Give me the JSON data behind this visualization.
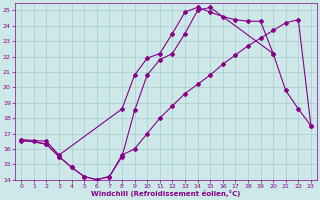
{
  "xlabel": "Windchill (Refroidissement éolien,°C)",
  "xlim": [
    -0.5,
    23.5
  ],
  "ylim": [
    14,
    25.5
  ],
  "xticks": [
    0,
    1,
    2,
    3,
    4,
    5,
    6,
    7,
    8,
    9,
    10,
    11,
    12,
    13,
    14,
    15,
    16,
    17,
    18,
    19,
    20,
    21,
    22,
    23
  ],
  "yticks": [
    14,
    15,
    16,
    17,
    18,
    19,
    20,
    21,
    22,
    23,
    24,
    25
  ],
  "bg_color": "#cde8e8",
  "grid_color": "#aacccc",
  "line_color": "#880088",
  "line1_x": [
    0,
    1,
    2,
    3,
    4,
    5,
    6,
    7,
    8,
    9,
    10,
    11,
    12,
    13,
    14,
    15,
    16,
    17,
    18,
    19,
    20,
    21,
    22,
    23
  ],
  "line1_y": [
    16.5,
    16.5,
    16.3,
    15.5,
    14.8,
    14.2,
    14.0,
    14.2,
    15.6,
    16.0,
    17.0,
    18.0,
    18.8,
    19.6,
    20.2,
    20.8,
    21.5,
    22.1,
    22.7,
    23.2,
    23.7,
    24.2,
    24.4,
    17.5
  ],
  "line2_x": [
    0,
    2,
    3,
    8,
    9,
    10,
    11,
    12,
    13,
    14,
    15,
    16,
    17,
    18,
    19,
    20,
    21,
    22,
    23
  ],
  "line2_y": [
    16.6,
    16.5,
    15.6,
    18.6,
    20.8,
    21.9,
    22.2,
    23.5,
    24.9,
    25.2,
    24.9,
    24.6,
    24.4,
    24.3,
    24.3,
    22.2,
    19.8,
    18.6,
    17.5
  ],
  "line3_x": [
    0,
    2,
    3,
    4,
    5,
    6,
    7,
    8,
    9,
    10,
    11,
    12,
    13,
    14,
    15,
    20
  ],
  "line3_y": [
    16.6,
    16.3,
    15.5,
    14.8,
    14.2,
    14.0,
    14.2,
    15.5,
    18.5,
    20.8,
    21.8,
    22.2,
    23.5,
    25.0,
    25.2,
    22.2
  ]
}
